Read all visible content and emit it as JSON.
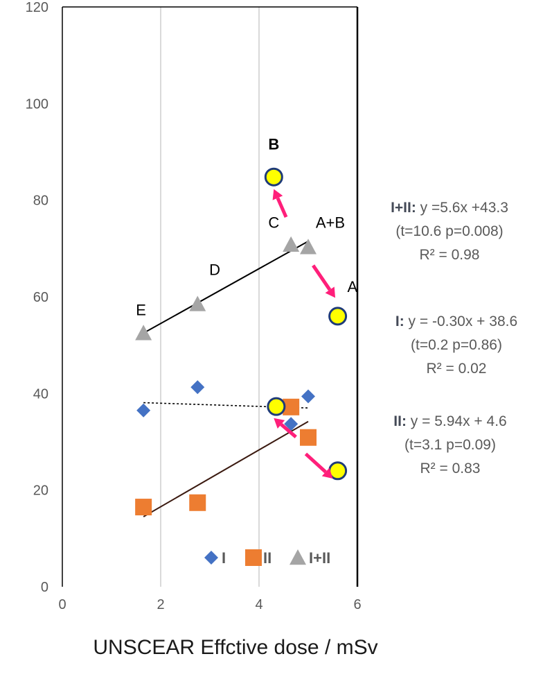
{
  "chart_data": {
    "type": "scatter",
    "xlabel": "UNSCEAR Effctive dose / mSv",
    "ylabel": "",
    "xlim": [
      0,
      6
    ],
    "ylim": [
      0,
      120
    ],
    "x_ticks": [
      "0",
      "2",
      "4",
      "6"
    ],
    "y_ticks": [
      "0",
      "20",
      "40",
      "60",
      "80",
      "100",
      "120"
    ],
    "grid": "vertical",
    "legend_position": "bottom",
    "colors": {
      "I": "#4472c4",
      "II": "#ed7d31",
      "I+II": "#a5a5a5",
      "highlight": "#ffff00",
      "highlight_border": "#1f3b78",
      "arrow": "#ff1f7a"
    },
    "series": [
      {
        "name": "I",
        "marker": "diamond",
        "x": [
          1.65,
          2.75,
          4.65,
          5.0
        ],
        "y": [
          36.5,
          41.3,
          33.7,
          39.4
        ]
      },
      {
        "name": "II",
        "marker": "square",
        "x": [
          1.65,
          2.75,
          4.65,
          5.0
        ],
        "y": [
          16.5,
          17.4,
          37.2,
          30.9
        ]
      },
      {
        "name": "I+II",
        "marker": "triangle",
        "x": [
          1.65,
          2.75,
          4.65,
          5.0
        ],
        "y": [
          52.5,
          58.5,
          70.8,
          70.3
        ]
      }
    ],
    "highlight_points": [
      {
        "x": 4.3,
        "y": 84.8
      },
      {
        "x": 5.6,
        "y": 56.0
      },
      {
        "x": 4.35,
        "y": 37.3
      },
      {
        "x": 5.6,
        "y": 24.0
      }
    ],
    "trendlines": [
      {
        "series": "I+II",
        "x": [
          1.65,
          5.0
        ],
        "y": [
          52.5,
          71.5
        ],
        "style": "solid"
      },
      {
        "series": "I",
        "x": [
          1.65,
          5.0
        ],
        "y": [
          38.1,
          37.0
        ],
        "style": "dotted"
      },
      {
        "series": "II",
        "x": [
          1.65,
          5.0
        ],
        "y": [
          14.5,
          34.2
        ],
        "style": "solid"
      }
    ],
    "point_labels": [
      {
        "text": "B",
        "x": 4.3,
        "y": 90.5,
        "bold": true
      },
      {
        "text": "C",
        "x": 4.3,
        "y": 74.3,
        "bold": false
      },
      {
        "text": "A+B",
        "x": 5.45,
        "y": 74.3,
        "bold": false
      },
      {
        "text": "D",
        "x": 3.1,
        "y": 64.5,
        "bold": false
      },
      {
        "text": "A",
        "x": 5.9,
        "y": 61.0,
        "bold": false
      },
      {
        "text": "E",
        "x": 1.6,
        "y": 56.2,
        "bold": false
      }
    ],
    "arrows": [
      {
        "from": [
          4.55,
          76.5
        ],
        "to": [
          4.3,
          82.3
        ]
      },
      {
        "from": [
          5.1,
          66.5
        ],
        "to": [
          5.55,
          59.8
        ]
      },
      {
        "from": [
          4.75,
          31.0
        ],
        "to": [
          4.3,
          34.9
        ]
      },
      {
        "from": [
          4.95,
          27.5
        ],
        "to": [
          5.5,
          22.4
        ]
      }
    ],
    "equations": [
      {
        "label": "I+II:",
        "line1": "y =5.6x +43.3",
        "line2": "(t=10.6 p=0.008)",
        "line3": "R² = 0.98"
      },
      {
        "label": "I:",
        "line1": "y = -0.30x + 38.6",
        "line2": "(t=0.2 p=0.86)",
        "line3": "R² = 0.02"
      },
      {
        "label": "II:",
        "line1": "y = 5.94x + 4.6",
        "line2": "(t=3.1 p=0.09)",
        "line3": "R² = 0.83"
      }
    ]
  }
}
